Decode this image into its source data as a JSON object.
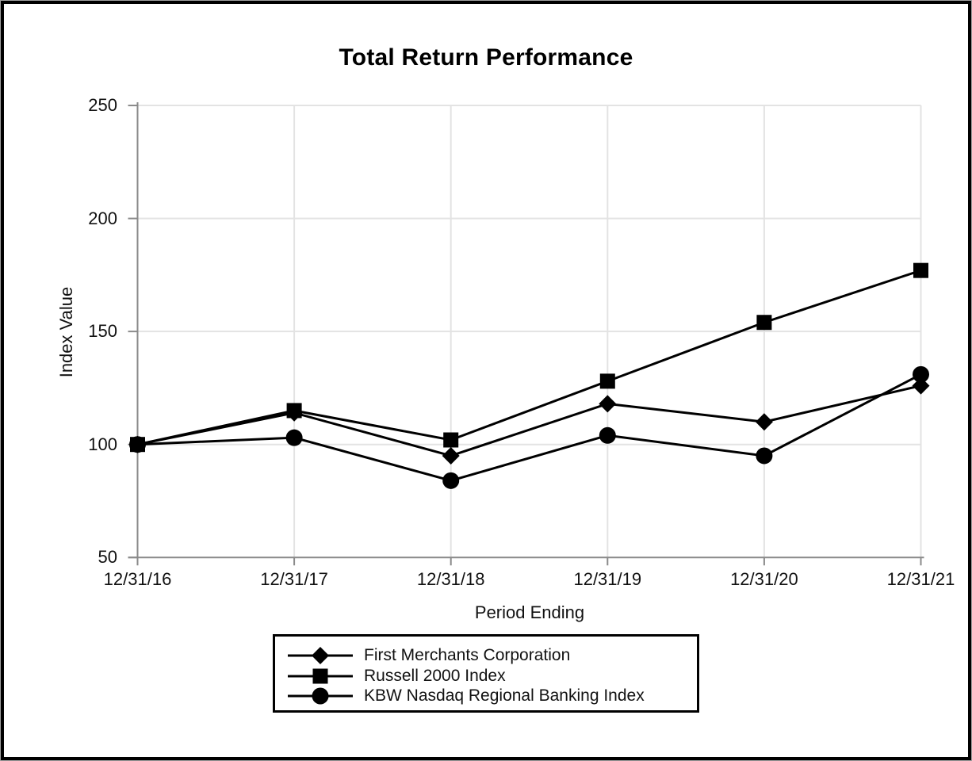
{
  "chart_data": {
    "type": "line",
    "title": "Total Return Performance",
    "xlabel": "Period Ending",
    "ylabel": "Index Value",
    "categories": [
      "12/31/16",
      "12/31/17",
      "12/31/18",
      "12/31/19",
      "12/31/20",
      "12/31/21"
    ],
    "series": [
      {
        "name": "First Merchants Corporation",
        "marker": "diamond",
        "values": [
          100,
          114,
          95,
          118,
          110,
          126
        ]
      },
      {
        "name": "Russell 2000 Index",
        "marker": "square",
        "values": [
          100,
          115,
          102,
          128,
          154,
          177
        ]
      },
      {
        "name": "KBW Nasdaq Regional Banking Index",
        "marker": "circle",
        "values": [
          100,
          103,
          84,
          104,
          95,
          131
        ]
      }
    ],
    "ylim": [
      50,
      250
    ],
    "y_ticks": [
      250,
      200,
      150,
      100,
      50
    ],
    "grid": true,
    "legend_position": "bottom",
    "colors": {
      "series": "#000000",
      "axis": "#8a8a8a",
      "grid": "#e3e3e3",
      "text": "#111111",
      "background": "#ffffff"
    }
  }
}
